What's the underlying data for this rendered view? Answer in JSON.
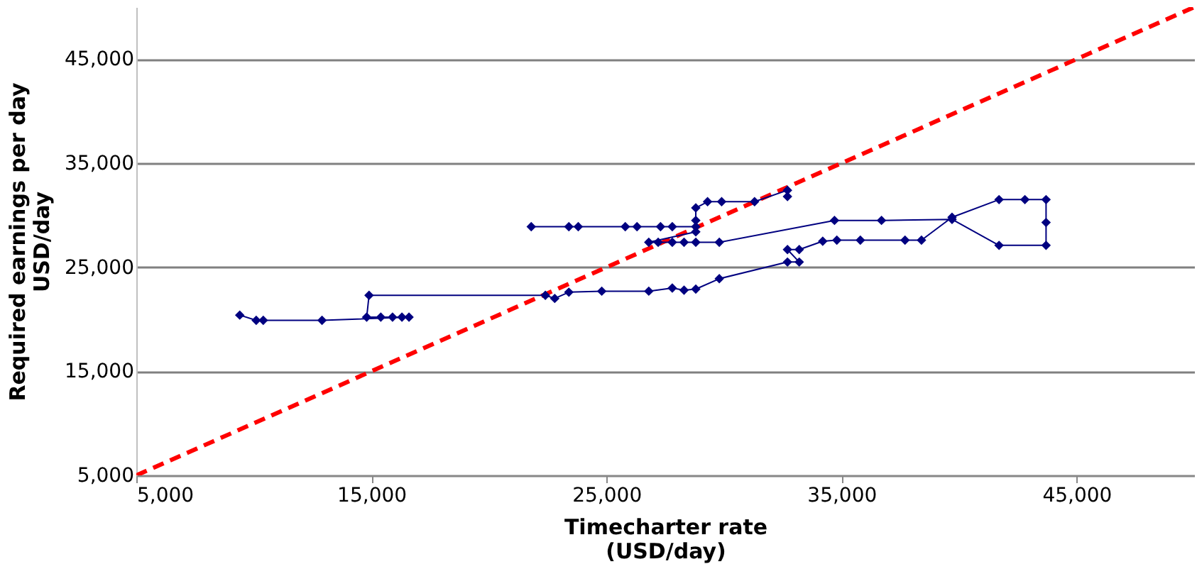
{
  "chart_data": {
    "type": "line",
    "xlabel": "Timecharter rate\n(USD/day)",
    "ylabel": "Required earnings per day\nUSD/day",
    "xlim": [
      5000,
      50000
    ],
    "ylim": [
      5000,
      50000
    ],
    "xticks": [
      {
        "value": 5000,
        "label": "5,000"
      },
      {
        "value": 15000,
        "label": "15,000"
      },
      {
        "value": 25000,
        "label": "25,000"
      },
      {
        "value": 35000,
        "label": "35,000"
      },
      {
        "value": 45000,
        "label": "45,000"
      }
    ],
    "yticks": [
      {
        "value": 5000,
        "label": "5,000"
      },
      {
        "value": 15000,
        "label": "15,000"
      },
      {
        "value": 25000,
        "label": "25,000"
      },
      {
        "value": 35000,
        "label": "35,000"
      },
      {
        "value": 45000,
        "label": "45,000"
      }
    ],
    "grid": "y",
    "marker": "diamond",
    "line_style": "solid",
    "series": [
      {
        "color": "#000080",
        "x": [
          9400,
          10100,
          10400,
          12900,
          16600,
          16300,
          15900,
          15400,
          14800,
          14900,
          22400,
          22800,
          23400,
          24800,
          26800,
          27800,
          28300,
          28800,
          29800,
          32700,
          33200,
          32700,
          33200,
          34200,
          34800,
          35800,
          37700,
          38400,
          39700,
          41700,
          42800,
          43700,
          43700,
          43700,
          41700,
          39700,
          36700,
          34700,
          29800,
          28800,
          28300,
          27800,
          27200,
          26800,
          28800,
          28800,
          28800,
          29300,
          29900,
          31300,
          32700,
          32700
        ],
        "values": [
          20400,
          19900,
          19900,
          19900,
          20200,
          20200,
          20200,
          20200,
          20200,
          22300,
          22300,
          22000,
          22600,
          22700,
          22700,
          23000,
          22800,
          22900,
          23900,
          25500,
          25500,
          26700,
          26700,
          27500,
          27600,
          27600,
          27600,
          27600,
          29800,
          31500,
          31500,
          31500,
          29300,
          27100,
          27100,
          29600,
          29500,
          29500,
          27400,
          27400,
          27400,
          27400,
          27400,
          27400,
          28400,
          29500,
          30700,
          31300,
          31300,
          31300,
          32400,
          31800
        ]
      },
      {
        "color": "#000080",
        "x": [
          21800,
          23400,
          23800,
          25800,
          26300,
          27300,
          27800,
          28800
        ],
        "values": [
          28900,
          28900,
          28900,
          28900,
          28900,
          28900,
          28900,
          28900
        ]
      },
      {
        "type": "line",
        "color": "#ff0000",
        "line_style": "dashed",
        "marker": "none",
        "x": [
          5000,
          50000
        ],
        "values": [
          5000,
          50000
        ]
      }
    ]
  }
}
